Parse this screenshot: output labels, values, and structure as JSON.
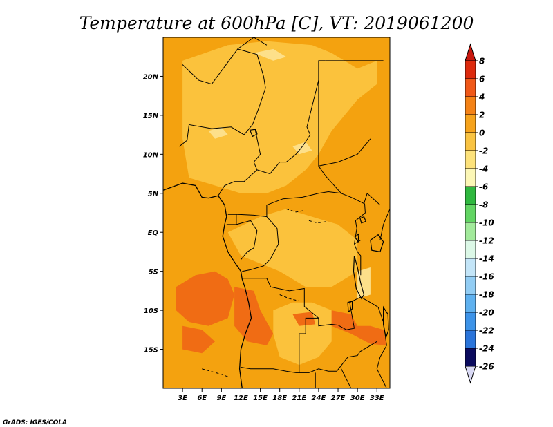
{
  "title": "Temperature at 600hPa [C], VT: 2019061200",
  "credit": "GrADS: IGES/COLA",
  "map": {
    "lon_range": [
      0,
      35
    ],
    "lat_range": [
      -20,
      25
    ],
    "lon_ticks": [
      {
        "value": 3,
        "label": "3E"
      },
      {
        "value": 6,
        "label": "6E"
      },
      {
        "value": 9,
        "label": "9E"
      },
      {
        "value": 12,
        "label": "12E"
      },
      {
        "value": 15,
        "label": "15E"
      },
      {
        "value": 18,
        "label": "18E"
      },
      {
        "value": 21,
        "label": "21E"
      },
      {
        "value": 24,
        "label": "24E"
      },
      {
        "value": 27,
        "label": "27E"
      },
      {
        "value": 30,
        "label": "30E"
      },
      {
        "value": 33,
        "label": "33E"
      }
    ],
    "lat_ticks": [
      {
        "value": 20,
        "label": "20N"
      },
      {
        "value": 15,
        "label": "15N"
      },
      {
        "value": 10,
        "label": "10N"
      },
      {
        "value": 5,
        "label": "5N"
      },
      {
        "value": 0,
        "label": "EQ"
      },
      {
        "value": -5,
        "label": "5S"
      },
      {
        "value": -10,
        "label": "10S"
      },
      {
        "value": -15,
        "label": "15S"
      }
    ],
    "base_color": "#f4a20f",
    "light_color": "#fbc23c",
    "pale_color": "#fde08a",
    "hot_color": "#f06c14",
    "land_regions_light": [
      [
        [
          3,
          22
        ],
        [
          10,
          24
        ],
        [
          16,
          24.5
        ],
        [
          23,
          24
        ],
        [
          26,
          23
        ],
        [
          30,
          21
        ],
        [
          33,
          22
        ],
        [
          33,
          19
        ],
        [
          30,
          17
        ],
        [
          26,
          13
        ],
        [
          24,
          10
        ],
        [
          22,
          8
        ],
        [
          19,
          6
        ],
        [
          16,
          5
        ],
        [
          12,
          5
        ],
        [
          8,
          6
        ],
        [
          4,
          7
        ],
        [
          3,
          12
        ]
      ],
      [
        [
          10,
          0
        ],
        [
          15,
          2
        ],
        [
          19,
          3
        ],
        [
          23,
          2
        ],
        [
          27,
          1
        ],
        [
          30,
          -1
        ],
        [
          30,
          -5
        ],
        [
          26,
          -7
        ],
        [
          22,
          -7
        ],
        [
          18,
          -5
        ],
        [
          15,
          -4
        ],
        [
          12,
          -3
        ]
      ],
      [
        [
          17,
          -10
        ],
        [
          20,
          -9
        ],
        [
          23,
          -9
        ],
        [
          26,
          -10
        ],
        [
          26,
          -14
        ],
        [
          24,
          -16
        ],
        [
          21,
          -17
        ],
        [
          18,
          -16
        ],
        [
          17,
          -13
        ]
      ]
    ],
    "land_regions_pale": [
      [
        [
          14,
          23
        ],
        [
          17,
          23.5
        ],
        [
          19,
          22.5
        ],
        [
          17,
          22
        ]
      ],
      [
        [
          7,
          13
        ],
        [
          9,
          13.5
        ],
        [
          10,
          12.5
        ],
        [
          8,
          12
        ]
      ],
      [
        [
          20,
          11
        ],
        [
          22,
          11.6
        ],
        [
          23,
          10.5
        ],
        [
          21,
          10
        ]
      ],
      [
        [
          30,
          -5
        ],
        [
          32,
          -4.5
        ],
        [
          32,
          -8
        ],
        [
          30,
          -8.5
        ]
      ]
    ],
    "hot_regions": [
      [
        [
          2,
          -7
        ],
        [
          5,
          -5.5
        ],
        [
          8,
          -5
        ],
        [
          10,
          -6
        ],
        [
          11,
          -8
        ],
        [
          10,
          -11
        ],
        [
          7,
          -12
        ],
        [
          4,
          -11.5
        ],
        [
          2,
          -10
        ]
      ],
      [
        [
          3,
          -12
        ],
        [
          6,
          -12.5
        ],
        [
          8,
          -14
        ],
        [
          6,
          -15.5
        ],
        [
          3,
          -15
        ]
      ],
      [
        [
          11,
          -7
        ],
        [
          14,
          -7.5
        ],
        [
          15,
          -10
        ],
        [
          17,
          -13
        ],
        [
          16,
          -14.5
        ],
        [
          13,
          -14
        ],
        [
          11,
          -12
        ]
      ],
      [
        [
          26,
          -10
        ],
        [
          29,
          -10.5
        ],
        [
          30,
          -12
        ],
        [
          32,
          -12
        ],
        [
          34,
          -12.5
        ],
        [
          34.5,
          -14.5
        ],
        [
          32,
          -14.3
        ],
        [
          29,
          -13
        ],
        [
          26,
          -12
        ]
      ],
      [
        [
          20,
          -10.5
        ],
        [
          23,
          -10.2
        ],
        [
          23.5,
          -11.8
        ],
        [
          21,
          -12
        ]
      ]
    ],
    "borders": [
      [
        [
          11.5,
          23.5
        ],
        [
          14.5,
          22.8
        ],
        [
          15.5,
          20
        ],
        [
          15.8,
          18.5
        ]
      ],
      [
        [
          3,
          21.5
        ],
        [
          5.5,
          19.5
        ],
        [
          7.5,
          19
        ],
        [
          11.5,
          23.5
        ],
        [
          14,
          25
        ],
        [
          16,
          24
        ]
      ],
      [
        [
          15.8,
          18.5
        ],
        [
          14.8,
          16
        ],
        [
          13.8,
          13.8
        ],
        [
          12.5,
          12.5
        ],
        [
          10.5,
          13.5
        ],
        [
          7.5,
          13.3
        ],
        [
          4,
          13.8
        ],
        [
          3.7,
          11.8
        ],
        [
          2.5,
          11
        ]
      ],
      [
        [
          14.2,
          13.2
        ],
        [
          15,
          10
        ],
        [
          14,
          9
        ],
        [
          14.5,
          8
        ],
        [
          16.5,
          7.5
        ],
        [
          18,
          9
        ],
        [
          19,
          9
        ],
        [
          20.5,
          10
        ],
        [
          21.5,
          11
        ],
        [
          22.7,
          12.5
        ],
        [
          22.2,
          13.5
        ],
        [
          24,
          19.5
        ],
        [
          24,
          22
        ],
        [
          25,
          22
        ]
      ],
      [
        [
          24,
          19.5
        ],
        [
          24,
          8.5
        ],
        [
          25,
          7.3
        ],
        [
          27.5,
          5
        ],
        [
          29,
          4.5
        ],
        [
          31,
          3.7
        ],
        [
          31.5,
          5
        ],
        [
          33.5,
          3.5
        ]
      ],
      [
        [
          24,
          8.5
        ],
        [
          27,
          9
        ],
        [
          30,
          10
        ],
        [
          32,
          12
        ]
      ],
      [
        [
          25,
          22
        ],
        [
          34,
          22
        ]
      ],
      [
        [
          10,
          2.3
        ],
        [
          11.5,
          2.3
        ],
        [
          14,
          2.2
        ],
        [
          16,
          2
        ],
        [
          16,
          3.5
        ],
        [
          18.5,
          4.3
        ],
        [
          21.5,
          4.5
        ],
        [
          24,
          5
        ],
        [
          25.5,
          5.2
        ],
        [
          27.5,
          5
        ]
      ],
      [
        [
          14.5,
          8
        ],
        [
          12.5,
          6.5
        ],
        [
          11,
          6.5
        ],
        [
          9.5,
          6
        ],
        [
          8.5,
          4.7
        ]
      ],
      [
        [
          9.8,
          1
        ],
        [
          11.3,
          1
        ],
        [
          11.3,
          2.3
        ]
      ],
      [
        [
          11.3,
          1
        ],
        [
          13.5,
          1.5
        ],
        [
          14.5,
          0.2
        ],
        [
          14,
          -2
        ],
        [
          13,
          -2.5
        ],
        [
          12,
          -3.5
        ]
      ],
      [
        [
          16,
          2
        ],
        [
          17.6,
          0.5
        ],
        [
          17.8,
          -1.5
        ],
        [
          16.5,
          -3.5
        ],
        [
          15.5,
          -4.3
        ],
        [
          13.5,
          -4.8
        ],
        [
          12.2,
          -5
        ]
      ],
      [
        [
          12.2,
          -5.9
        ],
        [
          16,
          -5.9
        ],
        [
          16.6,
          -7
        ],
        [
          19.5,
          -7.5
        ],
        [
          21.8,
          -7.2
        ],
        [
          21.8,
          -9.5
        ],
        [
          24,
          -11
        ],
        [
          24,
          -12
        ],
        [
          26,
          -11.8
        ],
        [
          27,
          -11.9
        ],
        [
          28.3,
          -12.5
        ],
        [
          29.5,
          -12.3
        ],
        [
          28.8,
          -9
        ],
        [
          30.5,
          -8.3
        ]
      ],
      [
        [
          24,
          -11
        ],
        [
          22,
          -11
        ],
        [
          22,
          -13
        ],
        [
          21,
          -13
        ],
        [
          21,
          -18
        ],
        [
          20.5,
          -18
        ],
        [
          19,
          -17.8
        ],
        [
          17,
          -17.5
        ],
        [
          13.5,
          -17.5
        ],
        [
          12,
          -17.3
        ]
      ],
      [
        [
          21,
          -18
        ],
        [
          22.5,
          -18
        ],
        [
          24,
          -17.5
        ],
        [
          25.5,
          -17.8
        ],
        [
          26.8,
          -17.8
        ],
        [
          28.5,
          -16
        ],
        [
          30,
          -15.8
        ],
        [
          30.4,
          -15.3
        ],
        [
          33,
          -14
        ]
      ],
      [
        [
          23.5,
          -18
        ],
        [
          23.5,
          -20
        ]
      ],
      [
        [
          27.5,
          -17.5
        ],
        [
          29,
          -20
        ]
      ],
      [
        [
          30.5,
          -8.3
        ],
        [
          32,
          -9
        ],
        [
          33.2,
          -9.6
        ],
        [
          34,
          -11.5
        ],
        [
          34.5,
          -14.5
        ],
        [
          33.5,
          -16
        ],
        [
          33,
          -17.5
        ],
        [
          34.5,
          -20
        ]
      ],
      [
        [
          29.5,
          -1.5
        ],
        [
          30.5,
          -1
        ],
        [
          31,
          -1
        ],
        [
          33.5,
          -1
        ],
        [
          34,
          1
        ],
        [
          35,
          3
        ]
      ],
      [
        [
          29.5,
          -1.5
        ],
        [
          30,
          -2.5
        ],
        [
          30.5,
          -3
        ],
        [
          30.5,
          -5.5
        ]
      ],
      [
        [
          29.5,
          -1.5
        ],
        [
          29.9,
          0.5
        ],
        [
          29.7,
          1.5
        ],
        [
          31.2,
          2.5
        ],
        [
          31.1,
          3.7
        ]
      ]
    ],
    "coastline": [
      [
        [
          0,
          5.4
        ],
        [
          3,
          6.3
        ],
        [
          5,
          6
        ],
        [
          6,
          4.5
        ],
        [
          7,
          4.4
        ],
        [
          8.5,
          4.7
        ],
        [
          9.5,
          3.5
        ],
        [
          9.8,
          2
        ],
        [
          9.5,
          1
        ],
        [
          9.2,
          -0.5
        ],
        [
          10,
          -2.5
        ],
        [
          11,
          -3.8
        ],
        [
          12,
          -5
        ],
        [
          12.2,
          -6
        ],
        [
          12.6,
          -7
        ],
        [
          13.2,
          -9
        ],
        [
          13.6,
          -11
        ],
        [
          12.7,
          -13
        ],
        [
          12,
          -15
        ],
        [
          11.8,
          -17.5
        ],
        [
          12.2,
          -20
        ]
      ]
    ],
    "lakes": [
      [
        [
          29.5,
          -3
        ],
        [
          30,
          -4.5
        ],
        [
          30.5,
          -6.5
        ],
        [
          31,
          -8
        ],
        [
          30.6,
          -8.5
        ],
        [
          29.8,
          -7.2
        ],
        [
          29.4,
          -5
        ]
      ],
      [
        [
          32,
          -1
        ],
        [
          33.2,
          -0.3
        ],
        [
          34,
          -1.2
        ],
        [
          33.5,
          -2.5
        ],
        [
          32.2,
          -2.3
        ]
      ],
      [
        [
          34,
          -9.6
        ],
        [
          34.7,
          -10.5
        ],
        [
          34.8,
          -12.5
        ],
        [
          34.4,
          -13.5
        ],
        [
          34,
          -11.8
        ]
      ],
      [
        [
          28.5,
          -9
        ],
        [
          29.2,
          -8.8
        ],
        [
          29.2,
          -9.8
        ],
        [
          28.6,
          -10.2
        ]
      ],
      [
        [
          29.6,
          -0.6
        ],
        [
          30.2,
          -0.2
        ],
        [
          30.1,
          -1.2
        ]
      ],
      [
        [
          30.4,
          1.8
        ],
        [
          31,
          2
        ],
        [
          31.3,
          1.4
        ],
        [
          30.6,
          1.2
        ]
      ],
      [
        [
          13.4,
          13.1
        ],
        [
          14.3,
          13.2
        ],
        [
          14.5,
          12.6
        ],
        [
          13.8,
          12.3
        ]
      ]
    ],
    "rivers": [
      [
        [
          18,
          -8
        ],
        [
          19.5,
          -8.5
        ],
        [
          21,
          -8.8
        ]
      ],
      [
        [
          19,
          3
        ],
        [
          20.5,
          2.6
        ],
        [
          21.8,
          2.8
        ]
      ],
      [
        [
          22.5,
          1.5
        ],
        [
          23.8,
          1.2
        ],
        [
          25.5,
          1.4
        ]
      ],
      [
        [
          6,
          -17.5
        ],
        [
          9,
          -18.2
        ],
        [
          10,
          -18.5
        ]
      ]
    ]
  },
  "colorbar": {
    "labels": [
      "8",
      "6",
      "4",
      "2",
      "0",
      "-2",
      "-4",
      "-6",
      "-8",
      "-10",
      "-12",
      "-14",
      "-16",
      "-18",
      "-20",
      "-22",
      "-24",
      "-26"
    ],
    "colors": [
      "#dd2a0d",
      "#f05818",
      "#f48216",
      "#f6a31c",
      "#f9c342",
      "#fde27b",
      "#fcf7b6",
      "#2fb83f",
      "#62d563",
      "#a2ea9b",
      "#dcf8e7",
      "#c3e5f8",
      "#92cdf4",
      "#5fb1ef",
      "#3d93e8",
      "#2a74da",
      "#1d50b8",
      "#152a86"
    ],
    "top_color": "#c8180e",
    "bottom_color": "#d9d9f4",
    "bottom_band_color": "#0b0b5e"
  }
}
